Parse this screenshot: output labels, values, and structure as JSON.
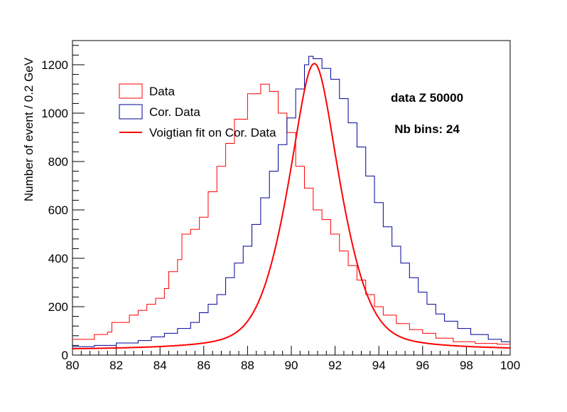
{
  "chart_data": {
    "type": "histogram",
    "xlim": [
      80,
      100
    ],
    "ylim": [
      0,
      1300
    ],
    "x_ticks": [
      80,
      82,
      84,
      86,
      88,
      90,
      92,
      94,
      96,
      98,
      100
    ],
    "y_ticks": [
      0,
      200,
      400,
      600,
      800,
      1000,
      1200
    ],
    "ylabel": "Number of event / 0.2 GeV",
    "xlabel": "",
    "bin_width": 0.2,
    "annotations": [
      "data Z 50000",
      "Nb bins: 24"
    ],
    "colors": {
      "data": "#ff0000",
      "cor_data": "#000099",
      "fit": "#ff0000"
    },
    "legend": {
      "placement": "upper-left",
      "entries": [
        {
          "label": "Data",
          "style": "box",
          "color": "#ff0000"
        },
        {
          "label": "Cor. Data",
          "style": "box",
          "color": "#000099"
        },
        {
          "label": "Voigtian fit on Cor. Data",
          "style": "line",
          "color": "#ff0000"
        }
      ]
    },
    "series": [
      {
        "name": "Data",
        "type": "step",
        "points": [
          [
            80,
            65
          ],
          [
            81,
            85
          ],
          [
            81.6,
            95
          ],
          [
            81.8,
            135
          ],
          [
            82.6,
            165
          ],
          [
            83.0,
            185
          ],
          [
            83.4,
            210
          ],
          [
            83.8,
            235
          ],
          [
            84.2,
            275
          ],
          [
            84.4,
            345
          ],
          [
            84.8,
            395
          ],
          [
            85.0,
            500
          ],
          [
            85.4,
            520
          ],
          [
            85.8,
            570
          ],
          [
            86.2,
            675
          ],
          [
            86.6,
            780
          ],
          [
            87.0,
            875
          ],
          [
            87.4,
            975
          ],
          [
            88.0,
            1080
          ],
          [
            88.6,
            1120
          ],
          [
            89.0,
            1090
          ],
          [
            89.4,
            1000
          ],
          [
            89.8,
            920
          ],
          [
            90.2,
            780
          ],
          [
            90.6,
            690
          ],
          [
            91.0,
            600
          ],
          [
            91.4,
            560
          ],
          [
            91.8,
            500
          ],
          [
            92.2,
            430
          ],
          [
            92.6,
            370
          ],
          [
            93.0,
            310
          ],
          [
            93.4,
            250
          ],
          [
            93.8,
            200
          ],
          [
            94.2,
            165
          ],
          [
            94.8,
            130
          ],
          [
            95.4,
            105
          ],
          [
            96.0,
            90
          ],
          [
            96.6,
            70
          ],
          [
            97.4,
            55
          ],
          [
            98.4,
            48
          ],
          [
            99.4,
            45
          ],
          [
            100,
            40
          ]
        ]
      },
      {
        "name": "Cor. Data",
        "type": "step",
        "points": [
          [
            80,
            35
          ],
          [
            81,
            40
          ],
          [
            82,
            50
          ],
          [
            83,
            60
          ],
          [
            83.6,
            75
          ],
          [
            84.2,
            90
          ],
          [
            84.8,
            110
          ],
          [
            85.4,
            135
          ],
          [
            85.8,
            175
          ],
          [
            86.2,
            210
          ],
          [
            86.6,
            250
          ],
          [
            87.0,
            320
          ],
          [
            87.4,
            380
          ],
          [
            87.8,
            450
          ],
          [
            88.2,
            540
          ],
          [
            88.6,
            650
          ],
          [
            89.0,
            760
          ],
          [
            89.4,
            870
          ],
          [
            89.8,
            980
          ],
          [
            90.2,
            1100
          ],
          [
            90.6,
            1200
          ],
          [
            90.8,
            1235
          ],
          [
            91.0,
            1225
          ],
          [
            91.4,
            1185
          ],
          [
            91.8,
            1140
          ],
          [
            92.2,
            1060
          ],
          [
            92.6,
            960
          ],
          [
            93.0,
            860
          ],
          [
            93.4,
            740
          ],
          [
            93.8,
            630
          ],
          [
            94.2,
            530
          ],
          [
            94.6,
            450
          ],
          [
            95.0,
            380
          ],
          [
            95.4,
            320
          ],
          [
            95.8,
            260
          ],
          [
            96.2,
            210
          ],
          [
            96.6,
            170
          ],
          [
            97.0,
            140
          ],
          [
            97.6,
            110
          ],
          [
            98.2,
            85
          ],
          [
            99.0,
            65
          ],
          [
            99.6,
            55
          ],
          [
            100,
            50
          ]
        ]
      },
      {
        "name": "Voigtian fit on Cor. Data",
        "type": "line",
        "model": "voigtian",
        "params": {
          "mean": 91.05,
          "peak": 1205,
          "sigma": 1.35,
          "gamma": 1.15,
          "baseline": 20
        }
      }
    ]
  }
}
